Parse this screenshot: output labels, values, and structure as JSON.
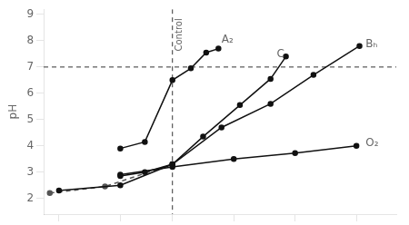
{
  "chart_data": {
    "type": "line",
    "y_label": "pH",
    "xlim": [
      -2.0,
      9.5
    ],
    "xticks": [
      -1.5,
      0.5,
      2.2,
      4.2,
      6.2,
      8.2
    ],
    "ylim": [
      1.4,
      9.2
    ],
    "yticks": [
      2,
      3,
      4,
      5,
      6,
      7,
      8,
      9
    ],
    "tick_labels": "y",
    "grid": false,
    "series": [
      {
        "x": [
          -1.5,
          0.5,
          2.2,
          3.8,
          5.4,
          6.8,
          8.3
        ],
        "values": [
          2.3,
          2.5,
          3.3,
          4.7,
          5.6,
          6.7,
          7.8
        ],
        "color": "#111111",
        "marker": "circle",
        "line_style": "solid"
      },
      {
        "x": [
          0.5,
          1.3,
          2.2,
          3.2,
          4.4,
          5.4,
          5.9
        ],
        "values": [
          2.85,
          3.0,
          3.3,
          4.35,
          5.55,
          6.55,
          7.4
        ],
        "color": "#111111",
        "marker": "circle",
        "line_style": "solid"
      },
      {
        "x": [
          0.5,
          1.3,
          2.2,
          2.8,
          3.3,
          3.7
        ],
        "values": [
          3.9,
          4.15,
          6.5,
          6.95,
          7.55,
          7.7
        ],
        "color": "#111111",
        "marker": "circle",
        "line_style": "solid"
      },
      {
        "x": [
          0.5,
          2.2,
          4.2,
          6.2,
          8.2
        ],
        "values": [
          2.9,
          3.2,
          3.5,
          3.72,
          4.0
        ],
        "color": "#111111",
        "marker": "circle",
        "line_style": "solid"
      },
      {
        "x": [
          -1.8,
          0.0,
          2.2
        ],
        "values": [
          2.2,
          2.45,
          3.3
        ],
        "color": "#555555",
        "marker": "circle",
        "line_style": "dashed"
      }
    ],
    "hlines": [
      {
        "value": 7.0,
        "color": "#333333",
        "line_style": "dashed"
      }
    ],
    "vlines": [
      {
        "value": 2.2,
        "color": "#333333",
        "line_style": "dashed"
      }
    ],
    "annotations": [
      {
        "text": "Control",
        "x": 2.28,
        "y": 8.85
      },
      {
        "text": "A₂",
        "x": 3.8,
        "y": 8.05
      },
      {
        "text": "C",
        "x": 5.6,
        "y": 7.5
      },
      {
        "text": "Bₕ",
        "x": 8.5,
        "y": 7.85
      },
      {
        "text": "O₂",
        "x": 8.5,
        "y": 4.1
      }
    ]
  }
}
